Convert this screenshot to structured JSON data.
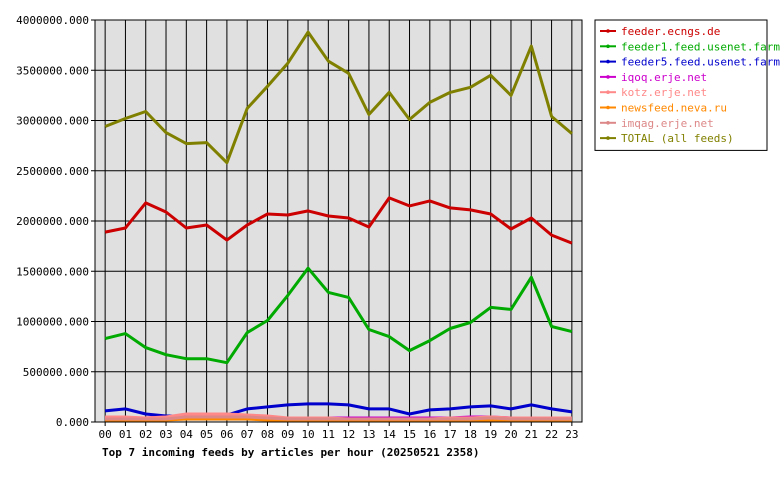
{
  "chart_data": {
    "type": "line",
    "title": "Top 7 incoming feeds by articles per hour (20250521 2358)",
    "xlabel": "",
    "ylabel": "",
    "categories": [
      "00",
      "01",
      "02",
      "03",
      "04",
      "05",
      "06",
      "07",
      "08",
      "09",
      "10",
      "11",
      "12",
      "13",
      "14",
      "15",
      "16",
      "17",
      "18",
      "19",
      "20",
      "21",
      "22",
      "23"
    ],
    "ylim": [
      0,
      4000000
    ],
    "y_ticks": [
      "0.000",
      "500000.000",
      "1000000.000",
      "1500000.000",
      "2000000.000",
      "2500000.000",
      "3000000.000",
      "3500000.000",
      "4000000.000"
    ],
    "grid": true,
    "legend_position": "top-right",
    "series": [
      {
        "name": "feeder.ecngs.de",
        "color": "#cc0000",
        "values": [
          1890000,
          1930000,
          2180000,
          2090000,
          1930000,
          1960000,
          1810000,
          1960000,
          2070000,
          2060000,
          2100000,
          2050000,
          2030000,
          1940000,
          2230000,
          2150000,
          2200000,
          2130000,
          2110000,
          2070000,
          1920000,
          2030000,
          1860000,
          1780000
        ]
      },
      {
        "name": "feeder1.feed.usenet.farm",
        "color": "#00aa00",
        "values": [
          830000,
          880000,
          740000,
          670000,
          630000,
          630000,
          590000,
          890000,
          1010000,
          1260000,
          1530000,
          1290000,
          1240000,
          920000,
          850000,
          710000,
          810000,
          930000,
          990000,
          1140000,
          1120000,
          1440000,
          950000,
          900000
        ]
      },
      {
        "name": "feeder5.feed.usenet.farm",
        "color": "#0000cc",
        "values": [
          110000,
          130000,
          80000,
          60000,
          60000,
          40000,
          70000,
          130000,
          150000,
          170000,
          180000,
          180000,
          170000,
          130000,
          130000,
          80000,
          120000,
          130000,
          150000,
          160000,
          130000,
          170000,
          130000,
          100000
        ]
      },
      {
        "name": "iqoq.erje.net",
        "color": "#cc00cc",
        "values": [
          40000,
          40000,
          40000,
          50000,
          60000,
          60000,
          60000,
          50000,
          40000,
          40000,
          40000,
          40000,
          40000,
          40000,
          40000,
          40000,
          40000,
          40000,
          50000,
          50000,
          40000,
          40000,
          40000,
          40000
        ]
      },
      {
        "name": "kotz.erje.net",
        "color": "#ff8888",
        "values": [
          50000,
          50000,
          40000,
          50000,
          80000,
          80000,
          80000,
          70000,
          60000,
          40000,
          40000,
          40000,
          30000,
          30000,
          30000,
          30000,
          30000,
          40000,
          40000,
          50000,
          40000,
          40000,
          40000,
          40000
        ]
      },
      {
        "name": "newsfeed.neva.ru",
        "color": "#ff8800",
        "values": [
          20000,
          20000,
          20000,
          20000,
          30000,
          30000,
          30000,
          30000,
          20000,
          20000,
          20000,
          20000,
          20000,
          20000,
          20000,
          20000,
          20000,
          20000,
          20000,
          20000,
          20000,
          20000,
          20000,
          20000
        ]
      },
      {
        "name": "imqag.erje.net",
        "color": "#dd8888",
        "values": [
          30000,
          30000,
          30000,
          30000,
          50000,
          50000,
          50000,
          50000,
          40000,
          30000,
          30000,
          30000,
          30000,
          30000,
          30000,
          30000,
          30000,
          30000,
          30000,
          40000,
          30000,
          30000,
          30000,
          30000
        ]
      },
      {
        "name": "TOTAL (all feeds)",
        "color": "#808000",
        "values": [
          2940000,
          3020000,
          3090000,
          2880000,
          2770000,
          2780000,
          2580000,
          3120000,
          3340000,
          3570000,
          3880000,
          3590000,
          3470000,
          3060000,
          3280000,
          3010000,
          3180000,
          3280000,
          3330000,
          3450000,
          3250000,
          3740000,
          3040000,
          2870000
        ]
      }
    ]
  }
}
